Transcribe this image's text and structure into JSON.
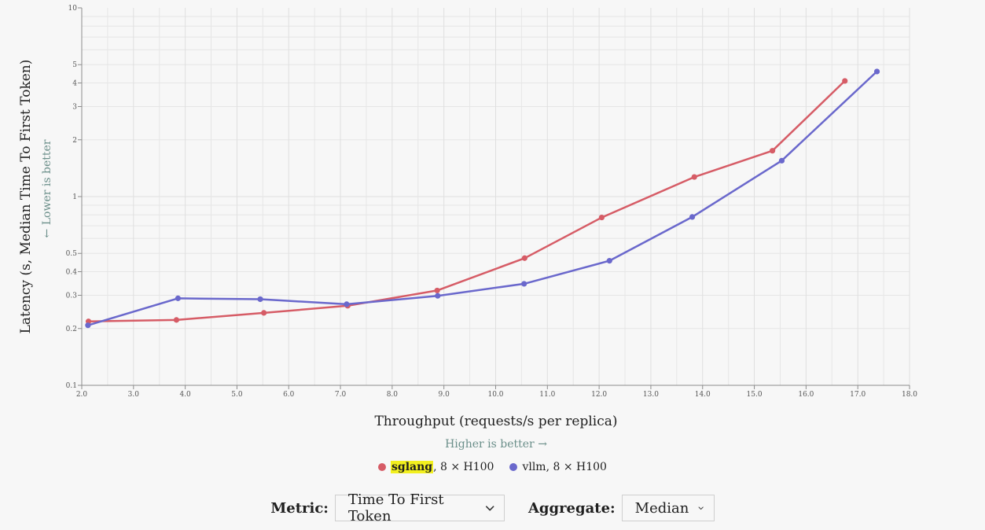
{
  "chart_data": {
    "type": "line",
    "title": "",
    "xlabel": "Throughput (requests/s per replica)",
    "ylabel": "Latency (s, Median Time To First Token)",
    "x_hint": "Higher is better →",
    "y_hint": "← Lower is better",
    "xlim": [
      2.0,
      18.0
    ],
    "ylim": [
      0.1,
      10
    ],
    "yscale": "log",
    "grid": true,
    "legend_position": "bottom",
    "x_ticks": [
      "2.0",
      "3.0",
      "4.0",
      "5.0",
      "6.0",
      "7.0",
      "8.0",
      "9.0",
      "10.0",
      "11.0",
      "12.0",
      "13.0",
      "14.0",
      "15.0",
      "16.0",
      "17.0",
      "18.0"
    ],
    "x_tick_values": [
      2,
      3,
      4,
      5,
      6,
      7,
      8,
      9,
      10,
      11,
      12,
      13,
      14,
      15,
      16,
      17,
      18
    ],
    "y_ticks": [
      "0.1",
      "0.2",
      "0.3",
      "0.4",
      "0.5",
      "1",
      "2",
      "3",
      "4",
      "5",
      "10"
    ],
    "y_tick_values": [
      0.1,
      0.2,
      0.3,
      0.4,
      0.5,
      1,
      2,
      3,
      4,
      5,
      10
    ],
    "series": [
      {
        "name": "sglang",
        "name_suffix": ", 8 × H100",
        "color": "#d65c66",
        "x": [
          2.13,
          3.83,
          5.52,
          7.14,
          8.87,
          10.56,
          12.05,
          13.84,
          15.35,
          16.75
        ],
        "y": [
          0.218,
          0.222,
          0.242,
          0.264,
          0.318,
          0.472,
          0.775,
          1.27,
          1.75,
          4.1
        ]
      },
      {
        "name": "vllm",
        "name_suffix": ", 8 × H100",
        "color": "#6a68cc",
        "x": [
          2.12,
          3.86,
          5.45,
          7.12,
          8.88,
          10.55,
          12.2,
          13.8,
          15.53,
          17.37
        ],
        "y": [
          0.208,
          0.289,
          0.286,
          0.269,
          0.298,
          0.345,
          0.457,
          0.78,
          1.55,
          4.6
        ]
      }
    ]
  },
  "legend": {
    "items": [
      {
        "label": "sglang",
        "suffix": ", 8 × H100"
      },
      {
        "label": "vllm",
        "suffix": ", 8 × H100"
      }
    ]
  },
  "controls": {
    "metric_label": "Metric:",
    "metric_value": "Time To First Token",
    "aggregate_label": "Aggregate:",
    "aggregate_value": "Median",
    "chevron_icon": "chevron-down-icon"
  }
}
